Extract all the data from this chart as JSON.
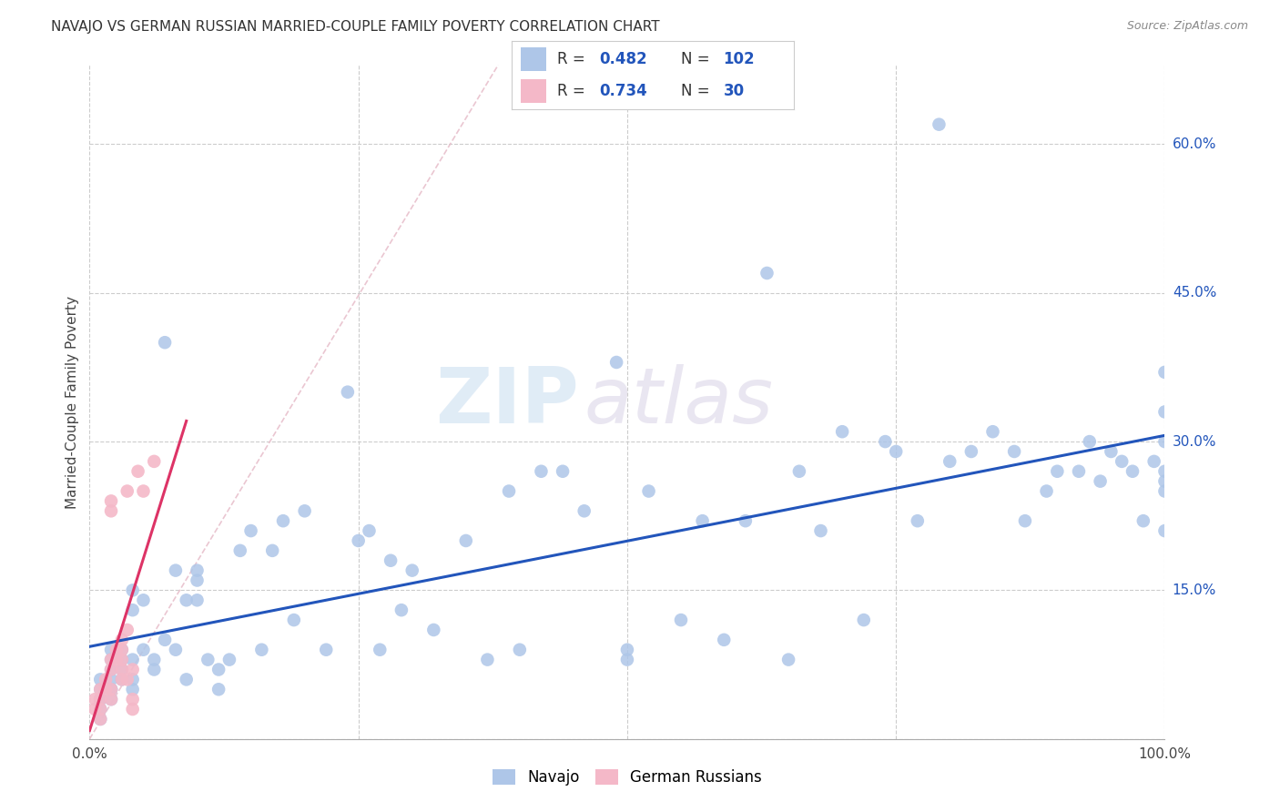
{
  "title": "NAVAJO VS GERMAN RUSSIAN MARRIED-COUPLE FAMILY POVERTY CORRELATION CHART",
  "source": "Source: ZipAtlas.com",
  "ylabel": "Married-Couple Family Poverty",
  "watermark_zip": "ZIP",
  "watermark_atlas": "atlas",
  "navajo_R": "0.482",
  "navajo_N": "102",
  "german_russian_R": "0.734",
  "german_russian_N": "30",
  "navajo_color": "#aec6e8",
  "navajo_edge": "#aec6e8",
  "german_russian_color": "#f4b8c8",
  "german_russian_edge": "#f4b8c8",
  "navajo_line_color": "#2255bb",
  "german_russian_line_color": "#dd3366",
  "ref_line_color": "#e8c0cc",
  "background_color": "#ffffff",
  "grid_color": "#cccccc",
  "ytick_positions": [
    0.0,
    0.15,
    0.3,
    0.45,
    0.6
  ],
  "ytick_labels": [
    "0.0%",
    "15.0%",
    "30.0%",
    "45.0%",
    "60.0%"
  ],
  "legend_label_color": "#2255bb",
  "legend_R_color": "#2255bb",
  "navajo_x": [
    0.01,
    0.01,
    0.01,
    0.01,
    0.01,
    0.01,
    0.02,
    0.02,
    0.02,
    0.02,
    0.02,
    0.02,
    0.02,
    0.03,
    0.03,
    0.03,
    0.03,
    0.04,
    0.04,
    0.04,
    0.04,
    0.04,
    0.05,
    0.05,
    0.06,
    0.06,
    0.07,
    0.07,
    0.08,
    0.08,
    0.09,
    0.09,
    0.1,
    0.1,
    0.1,
    0.11,
    0.12,
    0.12,
    0.13,
    0.14,
    0.15,
    0.16,
    0.17,
    0.18,
    0.19,
    0.2,
    0.22,
    0.24,
    0.25,
    0.26,
    0.27,
    0.28,
    0.29,
    0.3,
    0.32,
    0.35,
    0.37,
    0.39,
    0.4,
    0.42,
    0.44,
    0.46,
    0.49,
    0.5,
    0.5,
    0.52,
    0.55,
    0.57,
    0.59,
    0.61,
    0.63,
    0.65,
    0.66,
    0.68,
    0.7,
    0.72,
    0.74,
    0.75,
    0.77,
    0.79,
    0.8,
    0.82,
    0.84,
    0.86,
    0.87,
    0.89,
    0.9,
    0.92,
    0.93,
    0.94,
    0.95,
    0.96,
    0.97,
    0.98,
    0.99,
    1.0,
    1.0,
    1.0,
    1.0,
    1.0,
    1.0,
    1.0
  ],
  "navajo_y": [
    0.04,
    0.05,
    0.06,
    0.04,
    0.03,
    0.02,
    0.05,
    0.06,
    0.07,
    0.08,
    0.09,
    0.05,
    0.04,
    0.06,
    0.07,
    0.08,
    0.09,
    0.13,
    0.15,
    0.08,
    0.06,
    0.05,
    0.09,
    0.14,
    0.08,
    0.07,
    0.1,
    0.4,
    0.09,
    0.17,
    0.14,
    0.06,
    0.14,
    0.16,
    0.17,
    0.08,
    0.07,
    0.05,
    0.08,
    0.19,
    0.21,
    0.09,
    0.19,
    0.22,
    0.12,
    0.23,
    0.09,
    0.35,
    0.2,
    0.21,
    0.09,
    0.18,
    0.13,
    0.17,
    0.11,
    0.2,
    0.08,
    0.25,
    0.09,
    0.27,
    0.27,
    0.23,
    0.38,
    0.08,
    0.09,
    0.25,
    0.12,
    0.22,
    0.1,
    0.22,
    0.47,
    0.08,
    0.27,
    0.21,
    0.31,
    0.12,
    0.3,
    0.29,
    0.22,
    0.62,
    0.28,
    0.29,
    0.31,
    0.29,
    0.22,
    0.25,
    0.27,
    0.27,
    0.3,
    0.26,
    0.29,
    0.28,
    0.27,
    0.22,
    0.28,
    0.3,
    0.27,
    0.25,
    0.33,
    0.26,
    0.37,
    0.21
  ],
  "german_russian_x": [
    0.005,
    0.005,
    0.01,
    0.01,
    0.01,
    0.01,
    0.015,
    0.015,
    0.02,
    0.02,
    0.02,
    0.02,
    0.02,
    0.02,
    0.025,
    0.025,
    0.03,
    0.03,
    0.03,
    0.03,
    0.03,
    0.035,
    0.035,
    0.035,
    0.04,
    0.04,
    0.04,
    0.045,
    0.05,
    0.06
  ],
  "german_russian_y": [
    0.03,
    0.04,
    0.05,
    0.04,
    0.03,
    0.02,
    0.06,
    0.05,
    0.07,
    0.08,
    0.23,
    0.24,
    0.05,
    0.04,
    0.09,
    0.08,
    0.1,
    0.07,
    0.06,
    0.08,
    0.09,
    0.06,
    0.11,
    0.25,
    0.07,
    0.03,
    0.04,
    0.27,
    0.25,
    0.28
  ]
}
